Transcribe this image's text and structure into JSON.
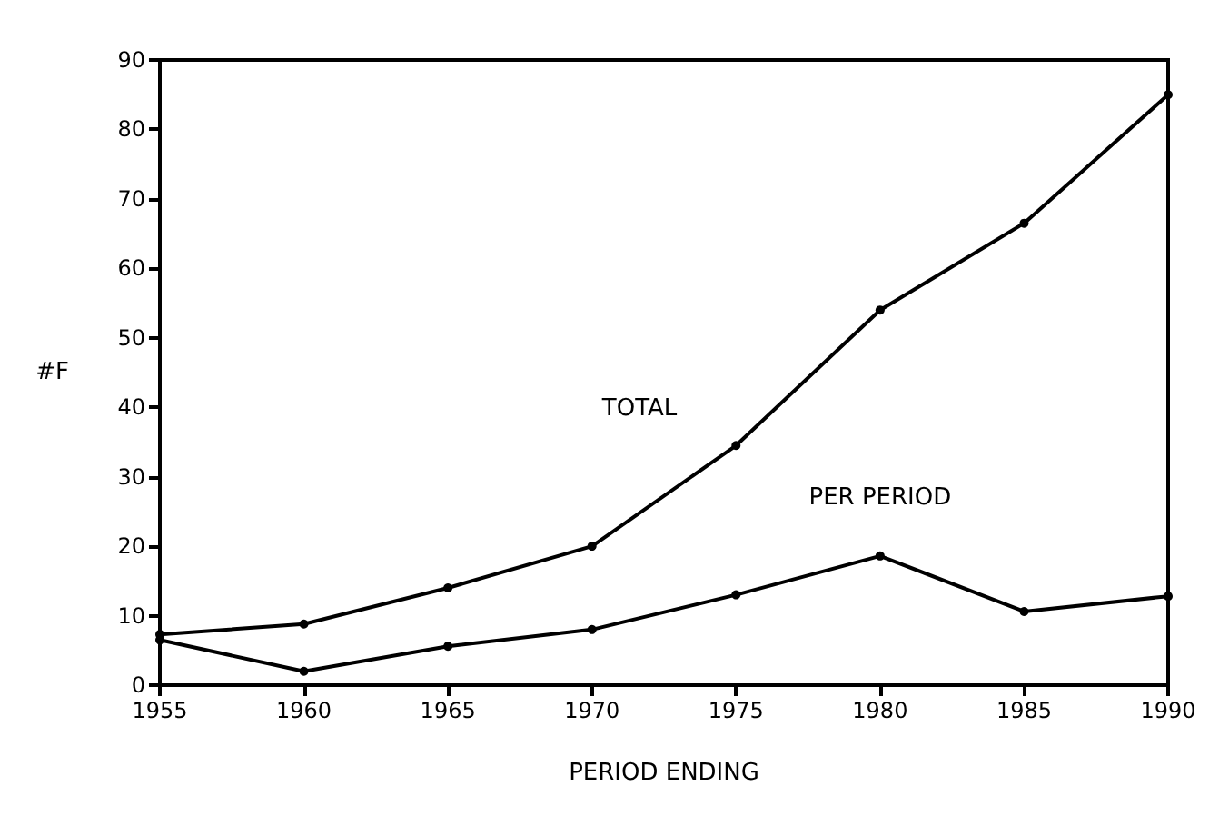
{
  "chart_data": {
    "type": "line",
    "xlabel": "PERIOD ENDING",
    "ylabel": "#F",
    "x": [
      1955,
      1960,
      1965,
      1970,
      1975,
      1980,
      1985,
      1990
    ],
    "series": [
      {
        "name": "TOTAL",
        "color": "#000000",
        "values": [
          7.3,
          8.8,
          14,
          20,
          34.5,
          54,
          66.5,
          85
        ]
      },
      {
        "name": "PER PERIOD",
        "color": "#000000",
        "values": [
          6.5,
          2,
          5.6,
          8,
          13,
          18.6,
          10.6,
          12.8
        ]
      }
    ],
    "xlim": [
      1955,
      1990
    ],
    "xticks": [
      1955,
      1960,
      1965,
      1970,
      1975,
      1980,
      1985,
      1990
    ],
    "ylim": [
      0,
      90
    ],
    "yticks": [
      0,
      10,
      20,
      30,
      40,
      50,
      60,
      70,
      80,
      90
    ],
    "grid": false,
    "legend": false,
    "marker": "circle",
    "line_style": "solid"
  }
}
